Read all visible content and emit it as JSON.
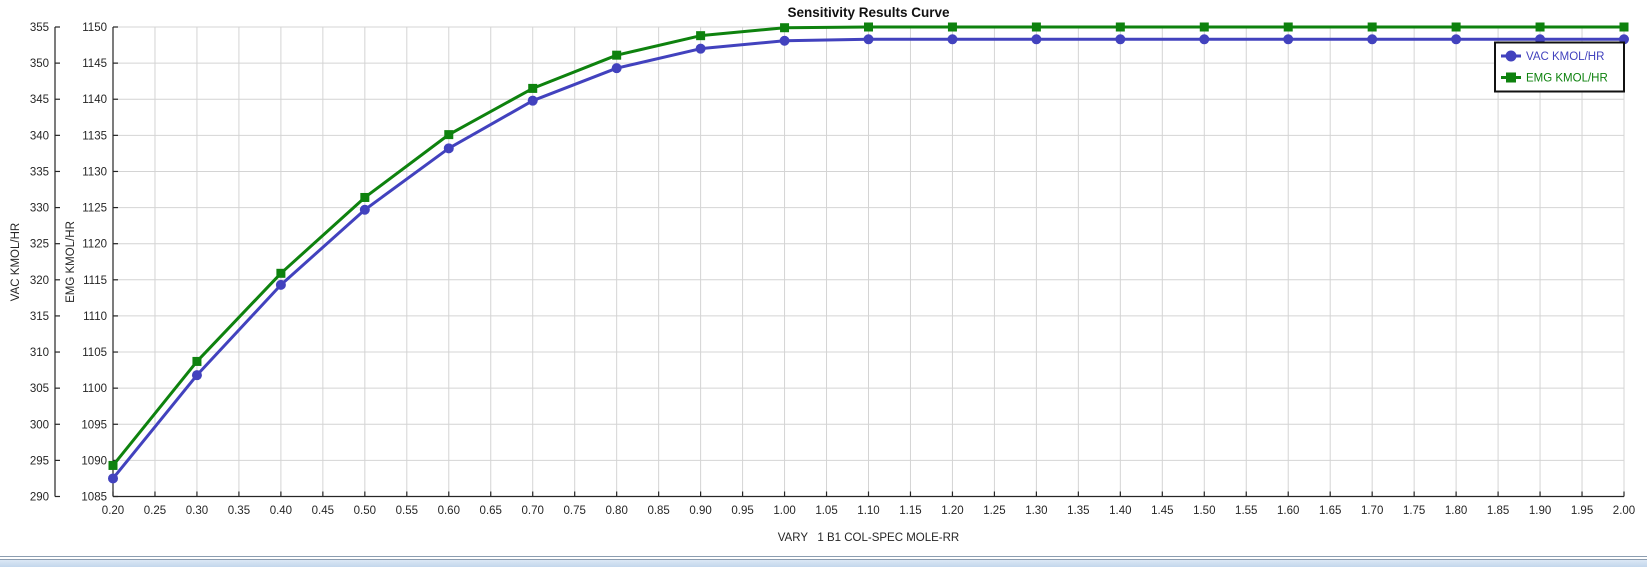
{
  "window": {
    "bottom_strip_color": "#C9DBEE",
    "bottom_strip_line_color": "#8C9DB0",
    "background": "#FFFFFF"
  },
  "chart_data": {
    "type": "line",
    "title": "Sensitivity Results Curve",
    "xlabel": "VARY   1 B1 COL-SPEC MOLE-RR",
    "x_range": [
      0.2,
      2.0
    ],
    "x_tick_step": 0.05,
    "grid": true,
    "grid_color": "#D4D4D4",
    "axis_color": "#262626",
    "legend_position": "top-right",
    "y_axes": [
      {
        "id": "vac",
        "title": "VAC KMOL/HR",
        "min": 290,
        "max": 355,
        "tick_step": 5
      },
      {
        "id": "emg",
        "title": "EMG KMOL/HR",
        "min": 1085,
        "max": 1150,
        "tick_step": 5
      }
    ],
    "x": [
      0.2,
      0.3,
      0.4,
      0.5,
      0.6,
      0.7,
      0.8,
      0.9,
      1.0,
      1.1,
      1.2,
      1.3,
      1.4,
      1.5,
      1.6,
      1.7,
      1.8,
      1.9,
      2.0
    ],
    "series": [
      {
        "name": "VAC KMOL/HR",
        "axis": "vac",
        "color": "#4242BE",
        "marker": "circle",
        "values": [
          292.5,
          306.8,
          319.3,
          329.7,
          338.2,
          344.8,
          349.3,
          352.0,
          353.1,
          353.3,
          353.3,
          353.3,
          353.3,
          353.3,
          353.3,
          353.3,
          353.3,
          353.3,
          353.3
        ]
      },
      {
        "name": "EMG KMOL/HR",
        "axis": "emg",
        "color": "#0E820E",
        "marker": "square",
        "values": [
          1089.3,
          1103.7,
          1115.9,
          1126.4,
          1135.1,
          1141.5,
          1146.1,
          1148.8,
          1149.9,
          1150,
          1150,
          1150,
          1150,
          1150,
          1150,
          1150,
          1150,
          1150,
          1150
        ]
      }
    ]
  }
}
